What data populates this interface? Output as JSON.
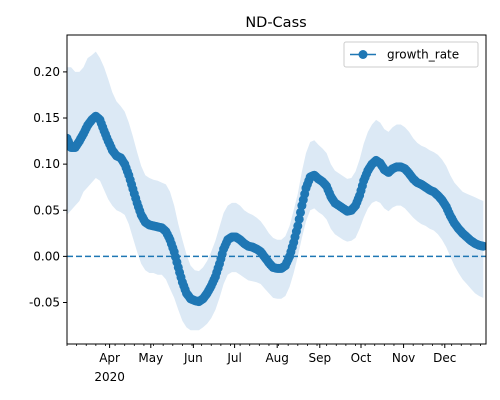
{
  "chart_data": {
    "type": "line",
    "title": "ND-Cass",
    "xlabel": "",
    "ylabel": "",
    "xlim": [
      "2020-03-01",
      "2020-12-31"
    ],
    "ylim": [
      -0.095,
      0.24
    ],
    "grid": false,
    "legend_position": "top-right",
    "x_ticks": [
      {
        "date": "2020-04-01",
        "label": "Apr"
      },
      {
        "date": "2020-05-01",
        "label": "May"
      },
      {
        "date": "2020-06-01",
        "label": "Jun"
      },
      {
        "date": "2020-07-01",
        "label": "Jul"
      },
      {
        "date": "2020-08-01",
        "label": "Aug"
      },
      {
        "date": "2020-09-01",
        "label": "Sep"
      },
      {
        "date": "2020-10-01",
        "label": "Oct"
      },
      {
        "date": "2020-11-01",
        "label": "Nov"
      },
      {
        "date": "2020-12-01",
        "label": "Dec"
      }
    ],
    "x_year_label": "2020",
    "y_ticks": [
      "0.20",
      "0.15",
      "0.10",
      "0.05",
      "0.00",
      "-0.05"
    ],
    "reference_line": {
      "y": 0.0,
      "style": "dashed",
      "color": "#1f77b4"
    },
    "colors": {
      "series": "#1f77b4",
      "band": "#dce9f5"
    },
    "series": [
      {
        "name": "growth_rate",
        "marker": "circle",
        "points": [
          {
            "x": "2020-03-01",
            "y": 0.128,
            "lo": 0.045,
            "hi": 0.205
          },
          {
            "x": "2020-03-04",
            "y": 0.118,
            "lo": 0.05,
            "hi": 0.205
          },
          {
            "x": "2020-03-07",
            "y": 0.118,
            "lo": 0.055,
            "hi": 0.2
          },
          {
            "x": "2020-03-10",
            "y": 0.125,
            "lo": 0.06,
            "hi": 0.2
          },
          {
            "x": "2020-03-13",
            "y": 0.133,
            "lo": 0.07,
            "hi": 0.205
          },
          {
            "x": "2020-03-16",
            "y": 0.142,
            "lo": 0.075,
            "hi": 0.215
          },
          {
            "x": "2020-03-19",
            "y": 0.148,
            "lo": 0.08,
            "hi": 0.218
          },
          {
            "x": "2020-03-22",
            "y": 0.152,
            "lo": 0.085,
            "hi": 0.222
          },
          {
            "x": "2020-03-25",
            "y": 0.148,
            "lo": 0.082,
            "hi": 0.215
          },
          {
            "x": "2020-03-28",
            "y": 0.136,
            "lo": 0.072,
            "hi": 0.205
          },
          {
            "x": "2020-03-31",
            "y": 0.125,
            "lo": 0.062,
            "hi": 0.192
          },
          {
            "x": "2020-04-03",
            "y": 0.115,
            "lo": 0.055,
            "hi": 0.178
          },
          {
            "x": "2020-04-06",
            "y": 0.109,
            "lo": 0.05,
            "hi": 0.168
          },
          {
            "x": "2020-04-09",
            "y": 0.107,
            "lo": 0.048,
            "hi": 0.163
          },
          {
            "x": "2020-04-12",
            "y": 0.1,
            "lo": 0.045,
            "hi": 0.157
          },
          {
            "x": "2020-04-15",
            "y": 0.088,
            "lo": 0.035,
            "hi": 0.145
          },
          {
            "x": "2020-04-18",
            "y": 0.073,
            "lo": 0.02,
            "hi": 0.13
          },
          {
            "x": "2020-04-21",
            "y": 0.058,
            "lo": 0.005,
            "hi": 0.113
          },
          {
            "x": "2020-04-24",
            "y": 0.045,
            "lo": -0.008,
            "hi": 0.098
          },
          {
            "x": "2020-04-27",
            "y": 0.037,
            "lo": -0.015,
            "hi": 0.088
          },
          {
            "x": "2020-04-30",
            "y": 0.034,
            "lo": -0.018,
            "hi": 0.085
          },
          {
            "x": "2020-05-03",
            "y": 0.033,
            "lo": -0.018,
            "hi": 0.083
          },
          {
            "x": "2020-05-06",
            "y": 0.032,
            "lo": -0.02,
            "hi": 0.082
          },
          {
            "x": "2020-05-09",
            "y": 0.031,
            "lo": -0.02,
            "hi": 0.08
          },
          {
            "x": "2020-05-12",
            "y": 0.027,
            "lo": -0.025,
            "hi": 0.078
          },
          {
            "x": "2020-05-15",
            "y": 0.018,
            "lo": -0.035,
            "hi": 0.07
          },
          {
            "x": "2020-05-18",
            "y": 0.005,
            "lo": -0.045,
            "hi": 0.055
          },
          {
            "x": "2020-05-21",
            "y": -0.012,
            "lo": -0.058,
            "hi": 0.035
          },
          {
            "x": "2020-05-24",
            "y": -0.028,
            "lo": -0.07,
            "hi": 0.018
          },
          {
            "x": "2020-05-27",
            "y": -0.04,
            "lo": -0.077,
            "hi": 0.002
          },
          {
            "x": "2020-05-30",
            "y": -0.046,
            "lo": -0.08,
            "hi": -0.01
          },
          {
            "x": "2020-06-02",
            "y": -0.048,
            "lo": -0.08,
            "hi": -0.015
          },
          {
            "x": "2020-06-05",
            "y": -0.049,
            "lo": -0.08,
            "hi": -0.016
          },
          {
            "x": "2020-06-08",
            "y": -0.046,
            "lo": -0.077,
            "hi": -0.012
          },
          {
            "x": "2020-06-11",
            "y": -0.04,
            "lo": -0.073,
            "hi": -0.005
          },
          {
            "x": "2020-06-14",
            "y": -0.032,
            "lo": -0.067,
            "hi": 0.005
          },
          {
            "x": "2020-06-17",
            "y": -0.022,
            "lo": -0.058,
            "hi": 0.017
          },
          {
            "x": "2020-06-20",
            "y": -0.008,
            "lo": -0.045,
            "hi": 0.032
          },
          {
            "x": "2020-06-23",
            "y": 0.008,
            "lo": -0.03,
            "hi": 0.047
          },
          {
            "x": "2020-06-26",
            "y": 0.018,
            "lo": -0.02,
            "hi": 0.055
          },
          {
            "x": "2020-06-29",
            "y": 0.021,
            "lo": -0.017,
            "hi": 0.058
          },
          {
            "x": "2020-07-02",
            "y": 0.021,
            "lo": -0.017,
            "hi": 0.058
          },
          {
            "x": "2020-07-05",
            "y": 0.018,
            "lo": -0.02,
            "hi": 0.055
          },
          {
            "x": "2020-07-08",
            "y": 0.014,
            "lo": -0.023,
            "hi": 0.05
          },
          {
            "x": "2020-07-11",
            "y": 0.011,
            "lo": -0.026,
            "hi": 0.047
          },
          {
            "x": "2020-07-14",
            "y": 0.01,
            "lo": -0.027,
            "hi": 0.045
          },
          {
            "x": "2020-07-17",
            "y": 0.008,
            "lo": -0.028,
            "hi": 0.042
          },
          {
            "x": "2020-07-20",
            "y": 0.005,
            "lo": -0.03,
            "hi": 0.038
          },
          {
            "x": "2020-07-23",
            "y": -0.001,
            "lo": -0.035,
            "hi": 0.032
          },
          {
            "x": "2020-07-26",
            "y": -0.007,
            "lo": -0.04,
            "hi": 0.025
          },
          {
            "x": "2020-07-29",
            "y": -0.012,
            "lo": -0.045,
            "hi": 0.02
          },
          {
            "x": "2020-08-01",
            "y": -0.013,
            "lo": -0.046,
            "hi": 0.018
          },
          {
            "x": "2020-08-04",
            "y": -0.013,
            "lo": -0.046,
            "hi": 0.018
          },
          {
            "x": "2020-08-07",
            "y": -0.01,
            "lo": -0.043,
            "hi": 0.022
          },
          {
            "x": "2020-08-10",
            "y": 0.0,
            "lo": -0.033,
            "hi": 0.033
          },
          {
            "x": "2020-08-13",
            "y": 0.015,
            "lo": -0.018,
            "hi": 0.05
          },
          {
            "x": "2020-08-16",
            "y": 0.033,
            "lo": 0.0,
            "hi": 0.068
          },
          {
            "x": "2020-08-19",
            "y": 0.055,
            "lo": 0.02,
            "hi": 0.092
          },
          {
            "x": "2020-08-22",
            "y": 0.074,
            "lo": 0.038,
            "hi": 0.112
          },
          {
            "x": "2020-08-25",
            "y": 0.086,
            "lo": 0.05,
            "hi": 0.124
          },
          {
            "x": "2020-08-28",
            "y": 0.088,
            "lo": 0.052,
            "hi": 0.126
          },
          {
            "x": "2020-08-31",
            "y": 0.084,
            "lo": 0.048,
            "hi": 0.121
          },
          {
            "x": "2020-09-03",
            "y": 0.081,
            "lo": 0.045,
            "hi": 0.117
          },
          {
            "x": "2020-09-06",
            "y": 0.076,
            "lo": 0.04,
            "hi": 0.112
          },
          {
            "x": "2020-09-09",
            "y": 0.065,
            "lo": 0.03,
            "hi": 0.1
          },
          {
            "x": "2020-09-12",
            "y": 0.058,
            "lo": 0.024,
            "hi": 0.093
          },
          {
            "x": "2020-09-15",
            "y": 0.055,
            "lo": 0.021,
            "hi": 0.09
          },
          {
            "x": "2020-09-18",
            "y": 0.052,
            "lo": 0.018,
            "hi": 0.087
          },
          {
            "x": "2020-09-21",
            "y": 0.049,
            "lo": 0.016,
            "hi": 0.084
          },
          {
            "x": "2020-09-24",
            "y": 0.05,
            "lo": 0.017,
            "hi": 0.085
          },
          {
            "x": "2020-09-27",
            "y": 0.055,
            "lo": 0.02,
            "hi": 0.092
          },
          {
            "x": "2020-09-30",
            "y": 0.066,
            "lo": 0.03,
            "hi": 0.105
          },
          {
            "x": "2020-10-03",
            "y": 0.082,
            "lo": 0.042,
            "hi": 0.122
          },
          {
            "x": "2020-10-06",
            "y": 0.093,
            "lo": 0.052,
            "hi": 0.135
          },
          {
            "x": "2020-10-09",
            "y": 0.1,
            "lo": 0.058,
            "hi": 0.143
          },
          {
            "x": "2020-10-12",
            "y": 0.104,
            "lo": 0.06,
            "hi": 0.148
          },
          {
            "x": "2020-10-15",
            "y": 0.101,
            "lo": 0.058,
            "hi": 0.145
          },
          {
            "x": "2020-10-18",
            "y": 0.094,
            "lo": 0.052,
            "hi": 0.138
          },
          {
            "x": "2020-10-21",
            "y": 0.091,
            "lo": 0.049,
            "hi": 0.135
          },
          {
            "x": "2020-10-24",
            "y": 0.095,
            "lo": 0.053,
            "hi": 0.14
          },
          {
            "x": "2020-10-27",
            "y": 0.097,
            "lo": 0.055,
            "hi": 0.143
          },
          {
            "x": "2020-10-30",
            "y": 0.097,
            "lo": 0.055,
            "hi": 0.143
          },
          {
            "x": "2020-11-02",
            "y": 0.095,
            "lo": 0.052,
            "hi": 0.14
          },
          {
            "x": "2020-11-05",
            "y": 0.09,
            "lo": 0.047,
            "hi": 0.135
          },
          {
            "x": "2020-11-08",
            "y": 0.084,
            "lo": 0.042,
            "hi": 0.128
          },
          {
            "x": "2020-11-11",
            "y": 0.08,
            "lo": 0.038,
            "hi": 0.123
          },
          {
            "x": "2020-11-14",
            "y": 0.078,
            "lo": 0.035,
            "hi": 0.12
          },
          {
            "x": "2020-11-17",
            "y": 0.075,
            "lo": 0.033,
            "hi": 0.118
          },
          {
            "x": "2020-11-20",
            "y": 0.072,
            "lo": 0.03,
            "hi": 0.115
          },
          {
            "x": "2020-11-23",
            "y": 0.07,
            "lo": 0.028,
            "hi": 0.113
          },
          {
            "x": "2020-11-26",
            "y": 0.066,
            "lo": 0.024,
            "hi": 0.11
          },
          {
            "x": "2020-11-29",
            "y": 0.061,
            "lo": 0.018,
            "hi": 0.105
          },
          {
            "x": "2020-12-02",
            "y": 0.054,
            "lo": 0.01,
            "hi": 0.098
          },
          {
            "x": "2020-12-05",
            "y": 0.044,
            "lo": 0.0,
            "hi": 0.088
          },
          {
            "x": "2020-12-08",
            "y": 0.036,
            "lo": -0.01,
            "hi": 0.08
          },
          {
            "x": "2020-12-11",
            "y": 0.03,
            "lo": -0.018,
            "hi": 0.075
          },
          {
            "x": "2020-12-14",
            "y": 0.025,
            "lo": -0.025,
            "hi": 0.07
          },
          {
            "x": "2020-12-17",
            "y": 0.021,
            "lo": -0.03,
            "hi": 0.068
          },
          {
            "x": "2020-12-20",
            "y": 0.017,
            "lo": -0.035,
            "hi": 0.066
          },
          {
            "x": "2020-12-23",
            "y": 0.014,
            "lo": -0.04,
            "hi": 0.064
          },
          {
            "x": "2020-12-26",
            "y": 0.012,
            "lo": -0.043,
            "hi": 0.062
          },
          {
            "x": "2020-12-29",
            "y": 0.011,
            "lo": -0.045,
            "hi": 0.06
          }
        ]
      }
    ]
  }
}
